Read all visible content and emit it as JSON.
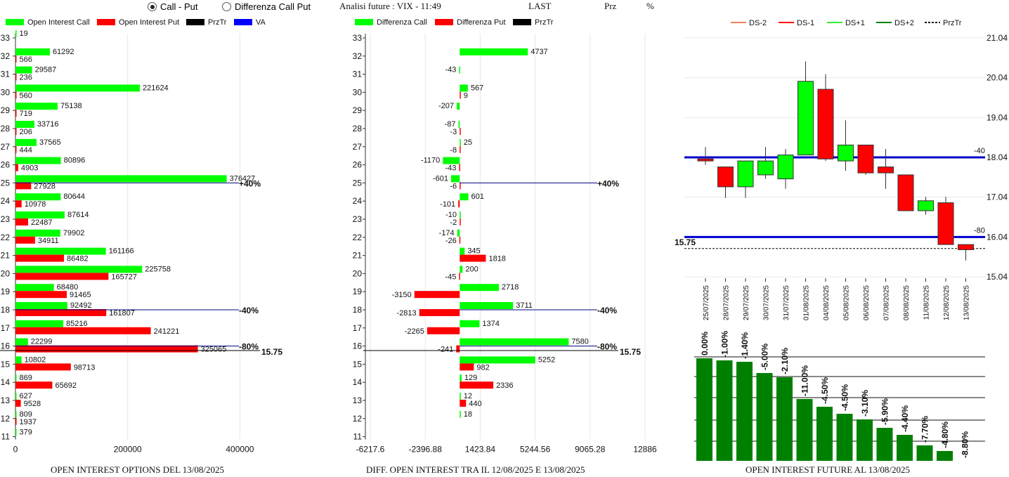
{
  "header": {
    "radio_call_put": "Call - Put",
    "radio_diff": "Differenza Call Put",
    "analysis_label": "Analisi future : VIX - 11:49",
    "last_label": "LAST",
    "prz_label": "Prz",
    "pct_label": "%"
  },
  "titles": {
    "left": "OPEN INTEREST OPTIONS DEL 13/08/2025",
    "middle": "DIFF. OPEN INTEREST TRA IL 12/08/2025 E 13/08/2025",
    "right": "OPEN INTEREST FUTURE AL 13/08/2025"
  },
  "colors": {
    "call": "#00ff00",
    "put": "#ff0000",
    "przTr": "#000000",
    "va": "#0000ff",
    "dark_green": "#008000"
  },
  "chart_data": [
    {
      "type": "bar",
      "orientation": "horizontal",
      "legend": [
        "Open Interest Call",
        "Open Interest Put",
        "PrzTr",
        "VA"
      ],
      "strikes": [
        33,
        32,
        31,
        30,
        29,
        28,
        27,
        26,
        25,
        24,
        23,
        22,
        21,
        20,
        19,
        18,
        17,
        16,
        15,
        14,
        13,
        12,
        11
      ],
      "series": [
        {
          "name": "Open Interest Call",
          "values": [
            19,
            61292,
            29587,
            221624,
            75138,
            33716,
            37565,
            80896,
            376427,
            80644,
            87614,
            79902,
            161166,
            225758,
            68480,
            92492,
            85216,
            22299,
            10802,
            869,
            627,
            809,
            379
          ]
        },
        {
          "name": "Open Interest Put",
          "values": [
            null,
            566,
            236,
            560,
            719,
            206,
            444,
            4903,
            27928,
            10978,
            22487,
            34911,
            86482,
            165727,
            91465,
            161807,
            241221,
            325065,
            98713,
            65692,
            9528,
            1937,
            null
          ]
        }
      ],
      "x_ticks": [
        "0",
        "200000",
        "400000"
      ],
      "xlim": [
        0,
        546000
      ],
      "annotations": [
        {
          "strike": 25,
          "label": "+40%"
        },
        {
          "strike": 18,
          "label": "-40%"
        },
        {
          "strike": 16,
          "label": "-80%"
        },
        {
          "strike": 15.75,
          "label": "15.75"
        }
      ]
    },
    {
      "type": "bar",
      "orientation": "horizontal",
      "legend": [
        "Differenza Call",
        "Differenza Put",
        "PrzTr"
      ],
      "strikes": [
        33,
        32,
        31,
        30,
        29,
        28,
        27,
        26,
        25,
        24,
        23,
        22,
        21,
        20,
        19,
        18,
        17,
        16,
        15,
        14,
        13,
        12,
        11
      ],
      "series": [
        {
          "name": "Differenza Call",
          "values": [
            null,
            4737,
            -43,
            567,
            -207,
            -87,
            25,
            -1170,
            -601,
            601,
            -10,
            -174,
            345,
            200,
            2718,
            3711,
            1374,
            7580,
            5252,
            129,
            12,
            18,
            null
          ]
        },
        {
          "name": "Differenza Put",
          "values": [
            null,
            null,
            null,
            9,
            null,
            -3,
            -8,
            -43,
            -6,
            -101,
            -2,
            -26,
            1818,
            -45,
            -3150,
            -2813,
            -2265,
            -241,
            982,
            2336,
            440,
            null,
            null
          ]
        }
      ],
      "x_ticks": [
        "-6217.6",
        "-2396.88",
        "1423.84",
        "5244.56",
        "9065.28",
        "12886"
      ],
      "xlim": [
        -6217.6,
        12886
      ],
      "annotations": [
        {
          "strike": 25,
          "label": "+40%"
        },
        {
          "strike": 18,
          "label": "-40%"
        },
        {
          "strike": 16,
          "label": "-80%"
        },
        {
          "strike": 15.75,
          "label": "15.75"
        }
      ]
    },
    {
      "type": "candlestick",
      "legend": [
        "DS-2",
        "DS-1",
        "DS+1",
        "DS+2",
        "PrzTr"
      ],
      "dates": [
        "25/07/2025",
        "28/07/2025",
        "29/07/2025",
        "30/07/2025",
        "31/07/2025",
        "01/08/2025",
        "04/08/2025",
        "05/08/2025",
        "06/08/2025",
        "07/08/2025",
        "08/08/2025",
        "11/08/2025",
        "12/08/2025",
        "13/08/2025"
      ],
      "ohlc": [
        {
          "o": 18.0,
          "h": 18.3,
          "l": 17.85,
          "c": 17.95
        },
        {
          "o": 17.8,
          "h": 17.8,
          "l": 17.02,
          "c": 17.3
        },
        {
          "o": 17.3,
          "h": 17.95,
          "l": 17.02,
          "c": 17.95
        },
        {
          "o": 17.6,
          "h": 18.3,
          "l": 17.5,
          "c": 17.95
        },
        {
          "o": 17.5,
          "h": 18.25,
          "l": 17.25,
          "c": 18.1
        },
        {
          "o": 18.1,
          "h": 20.45,
          "l": 18.1,
          "c": 19.95
        },
        {
          "o": 19.75,
          "h": 20.13,
          "l": 17.95,
          "c": 18.0
        },
        {
          "o": 17.95,
          "h": 18.97,
          "l": 17.7,
          "c": 18.35
        },
        {
          "o": 18.35,
          "h": 18.35,
          "l": 17.6,
          "c": 17.65
        },
        {
          "o": 17.8,
          "h": 18.25,
          "l": 17.25,
          "c": 17.65
        },
        {
          "o": 17.6,
          "h": 17.6,
          "l": 16.7,
          "c": 16.7
        },
        {
          "o": 16.7,
          "h": 17.05,
          "l": 16.6,
          "c": 16.95
        },
        {
          "o": 16.9,
          "h": 17.05,
          "l": 15.85,
          "c": 15.85
        },
        {
          "o": 15.85,
          "h": 15.85,
          "l": 15.45,
          "c": 15.72
        }
      ],
      "y_ticks": [
        "21.04",
        "20.04",
        "19.04",
        "18.04",
        "17.04",
        "16.04",
        "15.04"
      ],
      "ylim": [
        15.04,
        21.04
      ],
      "hlines": [
        {
          "value": 18.04,
          "label": "-40"
        },
        {
          "value": 16.04,
          "label": "-80"
        }
      ],
      "przTr": {
        "value": 15.75,
        "label": "15.75"
      }
    },
    {
      "type": "bar",
      "categories": [
        "25/07/2025",
        "28/07/2025",
        "29/07/2025",
        "30/07/2025",
        "31/07/2025",
        "01/08/2025",
        "04/08/2025",
        "05/08/2025",
        "06/08/2025",
        "07/08/2025",
        "08/08/2025",
        "11/08/2025",
        "12/08/2025",
        "13/08/2025"
      ],
      "values": [
        146,
        143,
        141,
        125,
        119,
        88,
        77,
        67,
        59,
        47,
        37,
        22,
        14,
        0
      ],
      "labels": [
        "0.00%",
        "-1.00%",
        "-1.40%",
        "-5.00%",
        "-2.10%",
        "-11.00%",
        "-4.50%",
        "-4.50%",
        "-3.10%",
        "-5.90%",
        "-4.40%",
        "-7.70%",
        "-4.80%",
        "-8.80%"
      ]
    }
  ]
}
